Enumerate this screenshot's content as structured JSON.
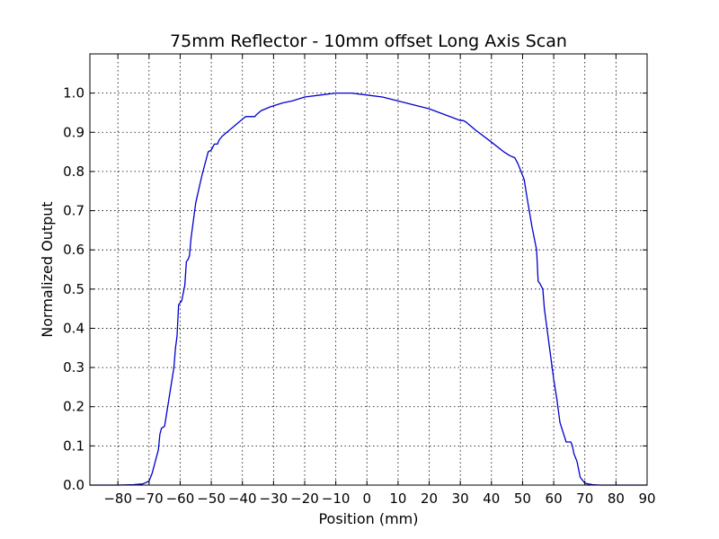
{
  "chart_data": {
    "type": "line",
    "title": "75mm Reflector - 10mm offset Long Axis Scan",
    "xlabel": "Position (mm)",
    "ylabel": "Normalized Output",
    "xlim": [
      -89,
      90
    ],
    "ylim": [
      0.0,
      1.1
    ],
    "x_ticks": [
      -80,
      -70,
      -60,
      -50,
      -40,
      -30,
      -20,
      -10,
      0,
      10,
      20,
      30,
      40,
      50,
      60,
      70,
      80,
      90
    ],
    "x_tick_labels": [
      "−80",
      "−70",
      "−60",
      "−50",
      "−40",
      "−30",
      "−20",
      "−10",
      "0",
      "10",
      "20",
      "30",
      "40",
      "50",
      "60",
      "70",
      "80",
      "90"
    ],
    "y_ticks": [
      0.0,
      0.1,
      0.2,
      0.3,
      0.4,
      0.5,
      0.6,
      0.7,
      0.8,
      0.9,
      1.0
    ],
    "y_tick_labels": [
      "0.0",
      "0.1",
      "0.2",
      "0.3",
      "0.4",
      "0.5",
      "0.6",
      "0.7",
      "0.8",
      "0.9",
      "1.0"
    ],
    "grid": true,
    "series": [
      {
        "color": "#0000cc",
        "x": [
          -89,
          -80,
          -75,
          -72,
          -70,
          -69,
          -68,
          -67,
          -66.5,
          -66,
          -65,
          -64,
          -63,
          -62,
          -61.5,
          -61,
          -60.5,
          -59.5,
          -58.5,
          -58,
          -57.5,
          -57,
          -56.5,
          -55,
          -53,
          -51,
          -50,
          -49,
          -48,
          -47.5,
          -46.5,
          -45,
          -42,
          -39,
          -36,
          -35.5,
          -34,
          -31,
          -27,
          -24,
          -20,
          -15,
          -10,
          -5,
          0,
          5,
          10,
          15,
          20,
          25,
          30,
          31,
          32,
          35,
          40,
          44,
          45,
          46,
          47.5,
          48.5,
          49.5,
          50.5,
          51.5,
          53,
          54.5,
          55,
          55.5,
          56.5,
          57,
          58,
          59,
          60,
          61,
          62,
          64,
          65.5,
          66,
          66.5,
          67.5,
          68,
          68.5,
          69.5,
          70,
          71,
          72.5,
          75,
          80,
          90
        ],
        "y": [
          0.0,
          0.0,
          0.001,
          0.003,
          0.01,
          0.03,
          0.06,
          0.09,
          0.13,
          0.145,
          0.15,
          0.2,
          0.25,
          0.3,
          0.35,
          0.38,
          0.46,
          0.47,
          0.51,
          0.57,
          0.575,
          0.585,
          0.63,
          0.72,
          0.79,
          0.85,
          0.855,
          0.87,
          0.87,
          0.88,
          0.89,
          0.9,
          0.92,
          0.94,
          0.94,
          0.945,
          0.955,
          0.965,
          0.975,
          0.98,
          0.99,
          0.995,
          1.0,
          1.0,
          0.995,
          0.99,
          0.98,
          0.97,
          0.96,
          0.945,
          0.93,
          0.93,
          0.925,
          0.905,
          0.875,
          0.85,
          0.845,
          0.84,
          0.835,
          0.82,
          0.8,
          0.78,
          0.73,
          0.66,
          0.6,
          0.52,
          0.515,
          0.5,
          0.45,
          0.39,
          0.33,
          0.27,
          0.22,
          0.16,
          0.11,
          0.11,
          0.1,
          0.08,
          0.06,
          0.04,
          0.02,
          0.01,
          0.005,
          0.003,
          0.001,
          0.0,
          0.0,
          0.0
        ]
      }
    ]
  }
}
